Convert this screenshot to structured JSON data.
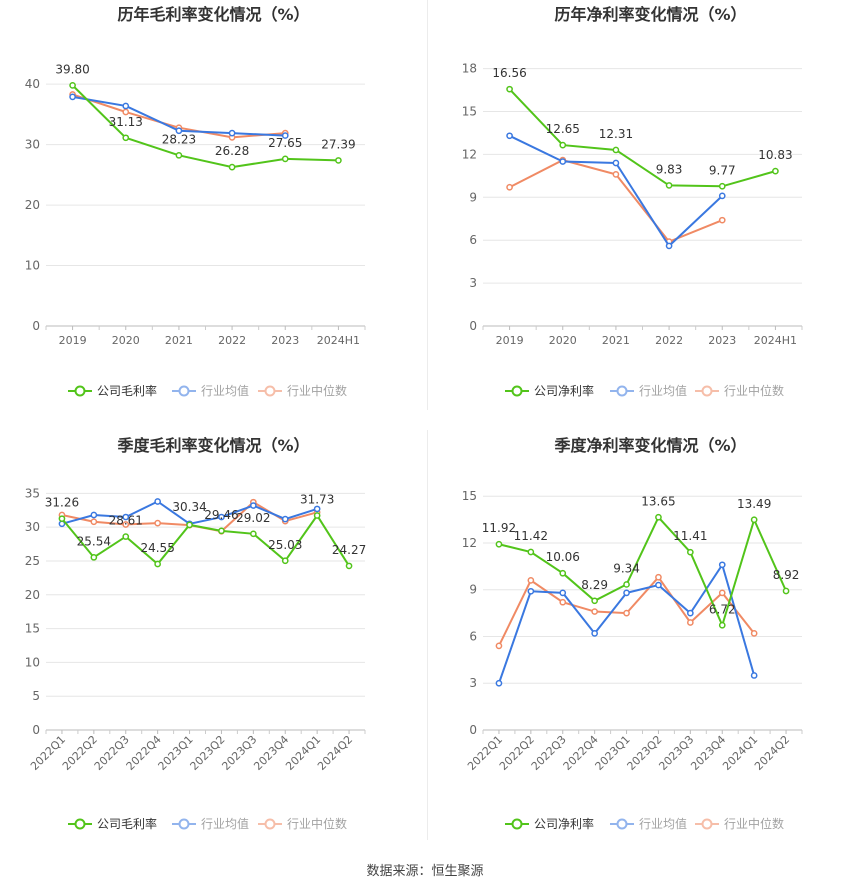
{
  "colors": {
    "company": "#52c41a",
    "avg": "#3a78e0",
    "median": "#f08a64",
    "grid": "#e6e6e6",
    "axis": "#999999",
    "text": "#666666"
  },
  "legend": {
    "company_gross": "公司毛利率",
    "company_net": "公司净利率",
    "avg": "行业均值",
    "median": "行业中位数"
  },
  "source": "数据来源：恒生聚源",
  "chart_data": [
    {
      "type": "line",
      "title": "历年毛利率变化情况（%）",
      "categories": [
        "2019",
        "2020",
        "2021",
        "2022",
        "2023",
        "2024H1"
      ],
      "yticks": [
        0,
        10,
        20,
        30,
        40
      ],
      "ylim": [
        0,
        44
      ],
      "rotate_x": false,
      "series": [
        {
          "name": "公司毛利率",
          "key": "company",
          "values": [
            39.8,
            31.13,
            28.23,
            26.28,
            27.65,
            27.39
          ],
          "labels": [
            "39.80",
            "31.13",
            "28.23",
            "26.28",
            "27.65",
            "27.39"
          ]
        },
        {
          "name": "行业均值",
          "key": "avg",
          "values": [
            37.9,
            36.4,
            32.3,
            31.9,
            31.5,
            null
          ]
        },
        {
          "name": "行业中位数",
          "key": "median",
          "values": [
            38.3,
            35.4,
            32.8,
            31.2,
            31.9,
            null
          ]
        }
      ]
    },
    {
      "type": "line",
      "title": "历年净利率变化情况（%）",
      "categories": [
        "2019",
        "2020",
        "2021",
        "2022",
        "2023",
        "2024H1"
      ],
      "yticks": [
        0,
        3,
        6,
        9,
        12,
        15,
        18
      ],
      "ylim": [
        0,
        18.6
      ],
      "rotate_x": false,
      "series": [
        {
          "name": "公司净利率",
          "key": "company",
          "values": [
            16.56,
            12.65,
            12.31,
            9.83,
            9.77,
            10.83
          ],
          "labels": [
            "16.56",
            "12.65",
            "12.31",
            "9.83",
            "9.77",
            "10.83"
          ]
        },
        {
          "name": "行业均值",
          "key": "avg",
          "values": [
            13.3,
            11.5,
            11.4,
            5.6,
            9.1,
            null
          ]
        },
        {
          "name": "行业中位数",
          "key": "median",
          "values": [
            9.7,
            11.6,
            10.6,
            5.9,
            7.4,
            null
          ]
        }
      ]
    },
    {
      "type": "line",
      "title": "季度毛利率变化情况（%）",
      "categories": [
        "2022Q1",
        "2022Q2",
        "2022Q3",
        "2022Q4",
        "2023Q1",
        "2023Q2",
        "2023Q3",
        "2023Q4",
        "2024Q1",
        "2024Q2"
      ],
      "yticks": [
        0,
        5,
        10,
        15,
        20,
        25,
        30,
        35
      ],
      "ylim": [
        0,
        35.5
      ],
      "rotate_x": true,
      "series": [
        {
          "name": "公司毛利率",
          "key": "company",
          "values": [
            31.26,
            25.54,
            28.61,
            24.55,
            30.34,
            29.46,
            29.02,
            25.03,
            31.73,
            24.27
          ],
          "labels": [
            "31.26",
            "25.54",
            "28.61",
            "24.55",
            "30.34",
            "29.46",
            "29.02",
            "25.03",
            "31.73",
            "24.27"
          ]
        },
        {
          "name": "行业均值",
          "key": "avg",
          "values": [
            30.5,
            31.8,
            31.5,
            33.8,
            30.5,
            31.5,
            33.2,
            31.2,
            32.7,
            null
          ]
        },
        {
          "name": "行业中位数",
          "key": "median",
          "values": [
            31.8,
            30.8,
            30.4,
            30.6,
            30.3,
            29.4,
            33.7,
            30.9,
            32.2,
            null
          ]
        }
      ]
    },
    {
      "type": "line",
      "title": "季度净利率变化情况（%）",
      "categories": [
        "2022Q1",
        "2022Q2",
        "2022Q3",
        "2022Q4",
        "2023Q1",
        "2023Q2",
        "2023Q3",
        "2023Q4",
        "2024Q1",
        "2024Q2"
      ],
      "yticks": [
        0,
        3,
        6,
        9,
        12,
        15
      ],
      "ylim": [
        0,
        15.4
      ],
      "rotate_x": true,
      "series": [
        {
          "name": "公司净利率",
          "key": "company",
          "values": [
            11.92,
            11.42,
            10.06,
            8.29,
            9.34,
            13.65,
            11.41,
            6.72,
            13.49,
            8.92
          ],
          "labels": [
            "11.92",
            "11.42",
            "10.06",
            "8.29",
            "9.34",
            "13.65",
            "11.41",
            "6.72",
            "13.49",
            "8.92"
          ]
        },
        {
          "name": "行业均值",
          "key": "avg",
          "values": [
            3.0,
            8.9,
            8.8,
            6.2,
            8.8,
            9.3,
            7.5,
            10.6,
            3.5,
            null
          ]
        },
        {
          "name": "行业中位数",
          "key": "median",
          "values": [
            5.4,
            9.6,
            8.2,
            7.6,
            7.5,
            9.8,
            6.9,
            8.8,
            6.2,
            null
          ]
        }
      ]
    }
  ]
}
